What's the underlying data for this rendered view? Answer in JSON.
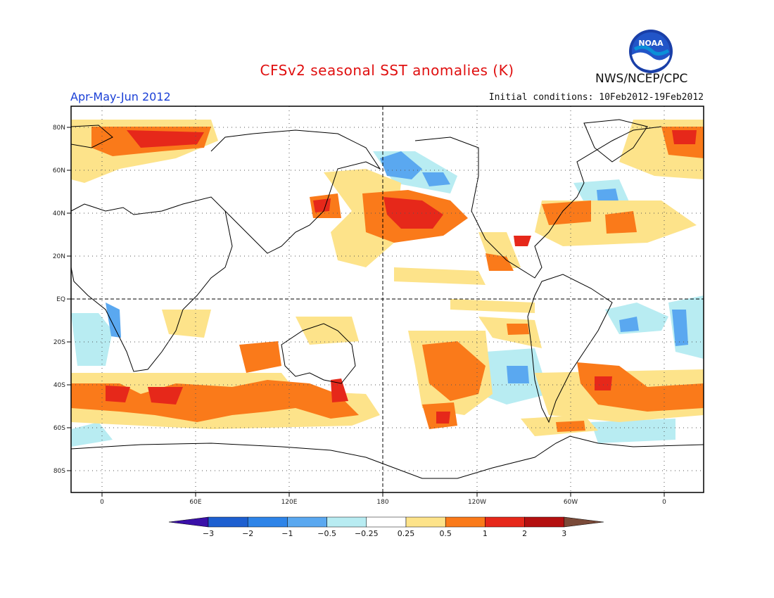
{
  "header": {
    "title": "CFSv2 seasonal SST anomalies (K)",
    "season": "Apr-May-Jun 2012",
    "initial_conditions": "Initial conditions: 10Feb2012-19Feb2012",
    "agency": "NWS/NCEP/CPC",
    "logo_text": "NOAA"
  },
  "map": {
    "lat_ticks": [
      "80N",
      "60N",
      "40N",
      "20N",
      "EQ",
      "20S",
      "40S",
      "60S",
      "80S"
    ],
    "lon_ticks": [
      "0",
      "60E",
      "120E",
      "180",
      "120W",
      "60W",
      "0"
    ]
  },
  "colorbar": {
    "levels": [
      "-3",
      "-2",
      "-1",
      "-0.5",
      "-0.25",
      "0.25",
      "0.5",
      "1",
      "2",
      "3"
    ],
    "colors": [
      "#3a10a8",
      "#1d5fd0",
      "#2e84e8",
      "#5aa8f0",
      "#b8ecf2",
      "#ffffff",
      "#fde38a",
      "#fa7a1a",
      "#e6281a",
      "#b41010",
      "#7a4a38"
    ]
  }
}
